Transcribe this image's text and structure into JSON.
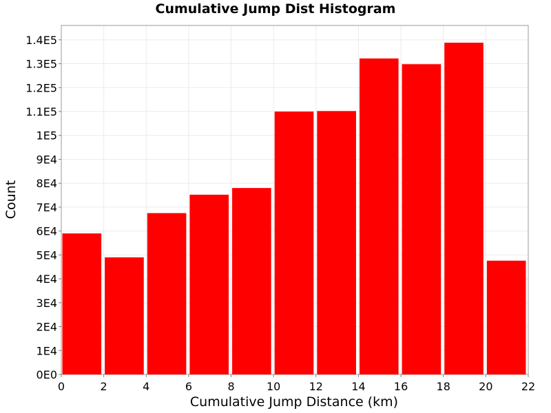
{
  "chart_data": {
    "type": "bar",
    "title": "Cumulative Jump Dist Histogram",
    "xlabel": "Cumulative Jump Distance (km)",
    "ylabel": "Count",
    "bins": [
      {
        "x0": 0,
        "x1": 2,
        "value": 59000
      },
      {
        "x0": 2,
        "x1": 4,
        "value": 49000
      },
      {
        "x0": 4,
        "x1": 6,
        "value": 67500
      },
      {
        "x0": 6,
        "x1": 8,
        "value": 75200
      },
      {
        "x0": 8,
        "x1": 10,
        "value": 78000
      },
      {
        "x0": 10,
        "x1": 12,
        "value": 110000
      },
      {
        "x0": 12,
        "x1": 14,
        "value": 110200
      },
      {
        "x0": 14,
        "x1": 16,
        "value": 132200
      },
      {
        "x0": 16,
        "x1": 18,
        "value": 129800
      },
      {
        "x0": 18,
        "x1": 20,
        "value": 138800
      },
      {
        "x0": 20,
        "x1": 22,
        "value": 47600
      }
    ],
    "xlim": [
      0,
      22
    ],
    "ylim": [
      0,
      146000
    ],
    "x_ticks": [
      "0",
      "2",
      "4",
      "6",
      "8",
      "10",
      "12",
      "14",
      "16",
      "18",
      "20",
      "22"
    ],
    "y_ticks": [
      "0E0",
      "1E4",
      "2E4",
      "3E4",
      "4E4",
      "5E4",
      "6E4",
      "7E4",
      "8E4",
      "9E4",
      "1E5",
      "1.1E5",
      "1.2E5",
      "1.3E5",
      "1.4E5"
    ],
    "bar_color": "#ff0000",
    "grid": true,
    "grid_color": "#ebebeb"
  }
}
